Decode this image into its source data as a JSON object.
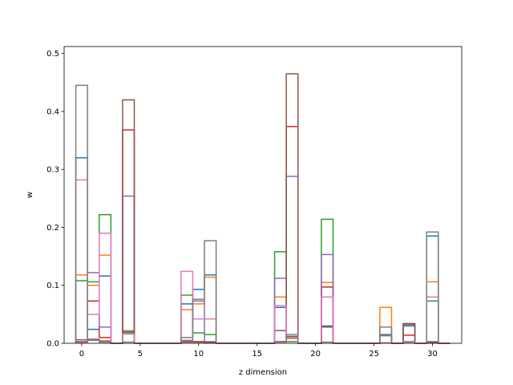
{
  "chart_data": {
    "type": "step",
    "xlabel": "z dimension",
    "ylabel": "w",
    "xlim": [
      -1.5,
      32.5
    ],
    "ylim": [
      0,
      0.512
    ],
    "xticks": [
      0,
      5,
      10,
      15,
      20,
      25,
      30
    ],
    "yticks": [
      0.0,
      0.1,
      0.2,
      0.3,
      0.4,
      0.5
    ],
    "bin_width": 1,
    "bins": [
      0,
      1,
      2,
      3,
      4,
      5,
      6,
      7,
      8,
      9,
      10,
      11,
      12,
      13,
      14,
      15,
      16,
      17,
      18,
      19,
      20,
      21,
      22,
      23,
      24,
      25,
      26,
      27,
      28,
      29,
      30,
      31
    ],
    "series": [
      {
        "color": "#1f77b4",
        "values": [
          0.32,
          0.024,
          0.116,
          0,
          0.02,
          0,
          0,
          0,
          0,
          0.068,
          0.093,
          0.118,
          0,
          0,
          0,
          0,
          0,
          0.062,
          0.012,
          0,
          0,
          0.03,
          0,
          0,
          0,
          0,
          0.015,
          0,
          0.032,
          0,
          0.185,
          0
        ]
      },
      {
        "color": "#ff7f0e",
        "values": [
          0.118,
          0.1,
          0.152,
          0,
          0.022,
          0,
          0,
          0,
          0,
          0.058,
          0.068,
          0.114,
          0,
          0,
          0,
          0,
          0,
          0.08,
          0.01,
          0,
          0,
          0.105,
          0,
          0,
          0,
          0,
          0.062,
          0,
          0.003,
          0,
          0.106,
          0
        ]
      },
      {
        "color": "#2ca02c",
        "values": [
          0.108,
          0.106,
          0.222,
          0,
          0.018,
          0,
          0,
          0,
          0,
          0.083,
          0.018,
          0.015,
          0,
          0,
          0,
          0,
          0,
          0.158,
          0.003,
          0,
          0,
          0.214,
          0,
          0,
          0,
          0,
          0.014,
          0,
          0.03,
          0,
          0.073,
          0
        ]
      },
      {
        "color": "#d62728",
        "values": [
          0.002,
          0.073,
          0.01,
          0,
          0.368,
          0,
          0,
          0,
          0,
          0.003,
          0.003,
          0.002,
          0,
          0,
          0,
          0,
          0,
          0.003,
          0.374,
          0,
          0,
          0.097,
          0,
          0,
          0,
          0,
          0.001,
          0,
          0.014,
          0,
          0.001,
          0
        ]
      },
      {
        "color": "#9467bd",
        "values": [
          0.003,
          0.122,
          0.028,
          0,
          0.254,
          0,
          0,
          0,
          0,
          0.005,
          0.073,
          0.003,
          0,
          0,
          0,
          0,
          0,
          0.112,
          0.288,
          0,
          0,
          0.153,
          0,
          0,
          0,
          0,
          0.013,
          0,
          0.031,
          0,
          0.003,
          0
        ]
      },
      {
        "color": "#8c564b",
        "values": [
          0.006,
          0.007,
          0.004,
          0,
          0.42,
          0,
          0,
          0,
          0,
          0.002,
          0.002,
          0.001,
          0,
          0,
          0,
          0,
          0,
          0.022,
          0.465,
          0,
          0,
          0.028,
          0,
          0,
          0,
          0,
          0.001,
          0,
          0.034,
          0,
          0.001,
          0
        ]
      },
      {
        "color": "#e377c2",
        "values": [
          0.282,
          0.05,
          0.19,
          0,
          0.016,
          0,
          0,
          0,
          0,
          0.124,
          0.042,
          0.042,
          0,
          0,
          0,
          0,
          0,
          0.065,
          0.008,
          0,
          0,
          0.08,
          0,
          0,
          0,
          0,
          0.001,
          0,
          0.003,
          0,
          0.08,
          0
        ]
      },
      {
        "color": "#7f7f7f",
        "values": [
          0.445,
          0.005,
          0.002,
          0,
          0.002,
          0,
          0,
          0,
          0,
          0.01,
          0.076,
          0.177,
          0,
          0,
          0,
          0,
          0,
          0.002,
          0.015,
          0,
          0,
          0.002,
          0,
          0,
          0,
          0,
          0.028,
          0,
          0.002,
          0,
          0.192,
          0
        ]
      }
    ]
  }
}
